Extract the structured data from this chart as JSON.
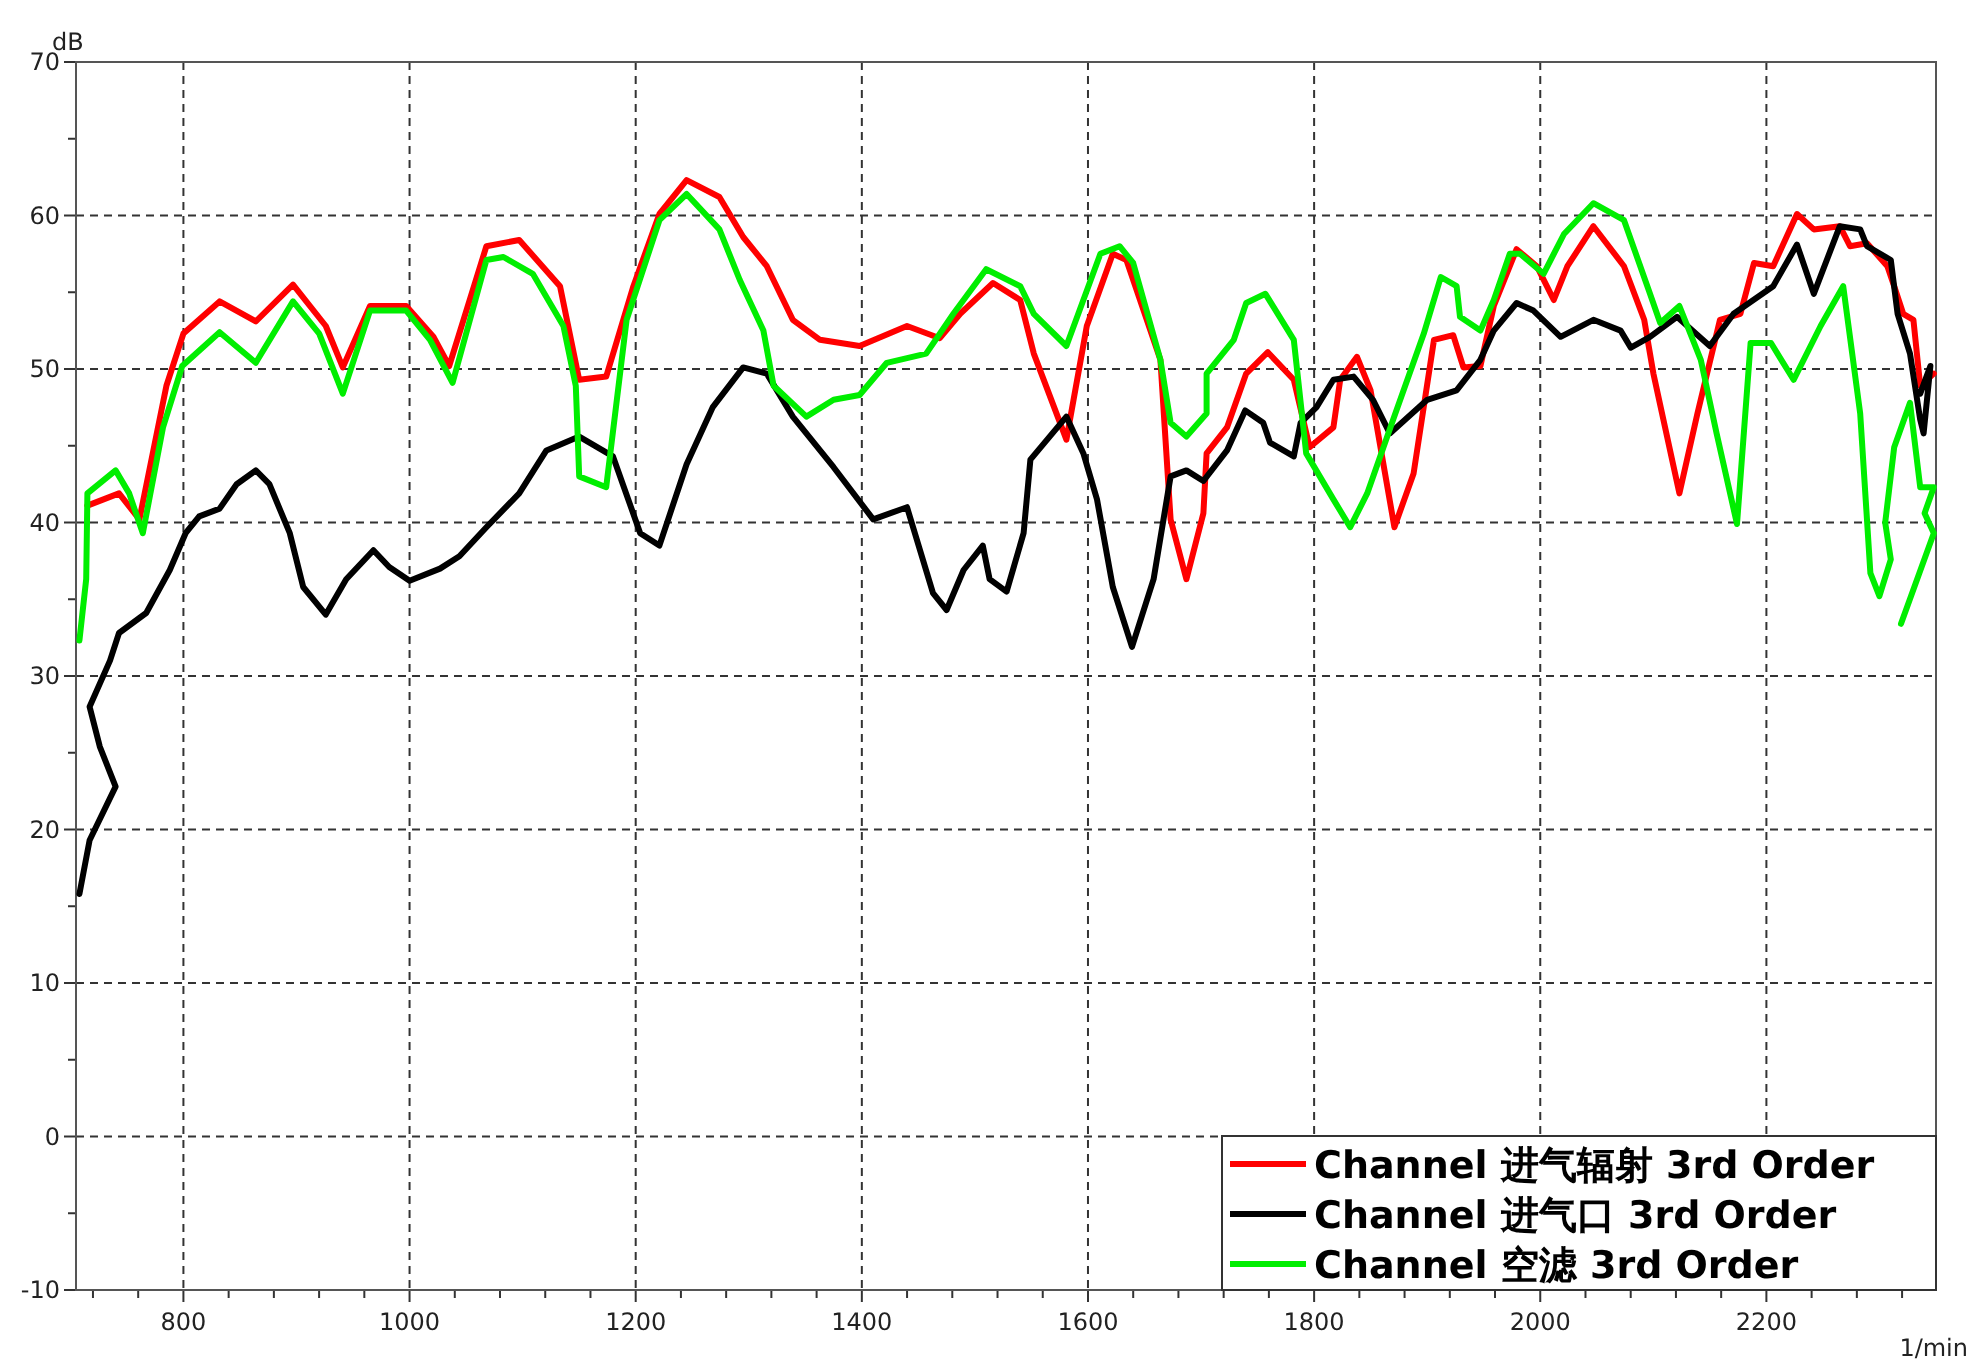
{
  "chart_data": {
    "type": "line",
    "ylabel": "dB",
    "xlabel": "1/min",
    "xlim": [
      705,
      2350
    ],
    "ylim": [
      -10,
      70
    ],
    "xticks": [
      {
        "value": 720,
        "label": null
      },
      {
        "value": 760,
        "label": null
      },
      800,
      {
        "value": 840,
        "label": null
      },
      {
        "value": 880,
        "label": null
      },
      {
        "value": 920,
        "label": null
      },
      {
        "value": 960,
        "label": null
      },
      1000,
      {
        "value": 1040,
        "label": null
      },
      {
        "value": 1080,
        "label": null
      },
      {
        "value": 1120,
        "label": null
      },
      {
        "value": 1160,
        "label": null
      },
      1200,
      {
        "value": 1240,
        "label": null
      },
      {
        "value": 1280,
        "label": null
      },
      {
        "value": 1320,
        "label": null
      },
      {
        "value": 1360,
        "label": null
      },
      1400,
      {
        "value": 1440,
        "label": null
      },
      {
        "value": 1480,
        "label": null
      },
      {
        "value": 1520,
        "label": null
      },
      {
        "value": 1560,
        "label": null
      },
      1600,
      {
        "value": 1640,
        "label": null
      },
      {
        "value": 1680,
        "label": null
      },
      {
        "value": 1720,
        "label": null
      },
      {
        "value": 1760,
        "label": null
      },
      1800,
      {
        "value": 1840,
        "label": null
      },
      {
        "value": 1880,
        "label": null
      },
      {
        "value": 1920,
        "label": null
      },
      {
        "value": 1960,
        "label": null
      },
      2000,
      {
        "value": 2040,
        "label": null
      },
      {
        "value": 2080,
        "label": null
      },
      {
        "value": 2120,
        "label": null
      },
      {
        "value": 2160,
        "label": null
      },
      2200,
      {
        "value": 2240,
        "label": null
      },
      {
        "value": 2280,
        "label": null
      },
      {
        "value": 2320,
        "label": null
      }
    ],
    "yticks": [
      -10,
      {
        "value": -5,
        "label": null
      },
      0,
      {
        "value": 5,
        "label": null
      },
      10,
      {
        "value": 15,
        "label": null
      },
      20,
      {
        "value": 25,
        "label": null
      },
      30,
      {
        "value": 35,
        "label": null
      },
      40,
      {
        "value": 45,
        "label": null
      },
      50,
      {
        "value": 55,
        "label": null
      },
      60,
      {
        "value": 65,
        "label": null
      },
      70
    ],
    "grid": true,
    "legend": "bottom right",
    "marker": "none",
    "series": [
      {
        "name": "Channel 进气辐射 3rd Order",
        "color": "#ff0000",
        "x": [
          715,
          743,
          761,
          785,
          800,
          832,
          864,
          897,
          926,
          941,
          965,
          997,
          1021,
          1035,
          1068,
          1097,
          1133,
          1150,
          1174,
          1198,
          1221,
          1245,
          1274,
          1295,
          1316,
          1339,
          1363,
          1398,
          1440,
          1469,
          1487,
          1516,
          1540,
          1552,
          1581,
          1599,
          1622,
          1634,
          1664,
          1673,
          1687,
          1702,
          1705,
          1723,
          1740,
          1759,
          1782,
          1796,
          1817,
          1823,
          1838,
          1850,
          1871,
          1888,
          1906,
          1923,
          1932,
          1947,
          1959,
          1979,
          1997,
          2012,
          2024,
          2047,
          2074,
          2092,
          2100,
          2123,
          2139,
          2159,
          2177,
          2189,
          2206,
          2227,
          2242,
          2265,
          2274,
          2289,
          2307,
          2313,
          2321,
          2330,
          2336,
          2348
        ],
        "values": [
          41.1,
          41.9,
          40.2,
          48.9,
          52.3,
          54.4,
          53.1,
          55.5,
          52.8,
          50.1,
          54.1,
          54.1,
          52.1,
          50.2,
          58.0,
          58.4,
          55.4,
          49.3,
          49.5,
          55.4,
          60.1,
          62.3,
          61.2,
          58.6,
          56.7,
          53.2,
          51.9,
          51.5,
          52.8,
          52.0,
          53.6,
          55.6,
          54.5,
          51.0,
          45.4,
          52.8,
          57.5,
          57.1,
          50.6,
          40.2,
          36.3,
          40.6,
          44.5,
          46.2,
          49.7,
          51.1,
          49.3,
          44.9,
          46.2,
          49.3,
          50.8,
          48.6,
          39.7,
          43.2,
          51.9,
          52.2,
          50.1,
          50.2,
          54.1,
          57.8,
          56.7,
          54.5,
          56.7,
          59.3,
          56.7,
          53.2,
          49.7,
          41.9,
          47.1,
          53.2,
          53.6,
          56.9,
          56.7,
          60.1,
          59.1,
          59.3,
          58.0,
          58.2,
          56.7,
          55.4,
          53.6,
          53.2,
          48.9,
          49.7
        ]
      },
      {
        "name": "Channel 进气口 3rd Order",
        "color": "#000000",
        "x": [
          708,
          717,
          740,
          726,
          717,
          735,
          743,
          767,
          788,
          802,
          814,
          832,
          847,
          864,
          876,
          894,
          906,
          926,
          944,
          968,
          982,
          1000,
          1027,
          1044,
          1068,
          1097,
          1121,
          1150,
          1180,
          1204,
          1221,
          1245,
          1268,
          1295,
          1316,
          1339,
          1375,
          1410,
          1440,
          1463,
          1475,
          1490,
          1507,
          1513,
          1528,
          1543,
          1549,
          1581,
          1596,
          1608,
          1622,
          1639,
          1658,
          1673,
          1687,
          1702,
          1723,
          1739,
          1755,
          1761,
          1782,
          1788,
          1802,
          1817,
          1835,
          1852,
          1867,
          1900,
          1926,
          1947,
          1959,
          1979,
          1994,
          2018,
          2047,
          2071,
          2080,
          2097,
          2121,
          2150,
          2171,
          2206,
          2227,
          2242,
          2265,
          2283,
          2289,
          2310,
          2316,
          2327,
          2336,
          2339,
          2345,
          2336
        ],
        "values": [
          15.8,
          19.3,
          22.8,
          25.4,
          28.0,
          31.0,
          32.8,
          34.1,
          36.9,
          39.3,
          40.4,
          40.9,
          42.5,
          43.4,
          42.5,
          39.3,
          35.8,
          34.0,
          36.3,
          38.2,
          37.1,
          36.2,
          37.0,
          37.8,
          39.7,
          41.9,
          44.7,
          45.6,
          44.3,
          39.3,
          38.5,
          43.8,
          47.5,
          50.1,
          49.7,
          46.9,
          43.6,
          40.2,
          41.0,
          35.4,
          34.3,
          36.9,
          38.5,
          36.3,
          35.5,
          39.3,
          44.1,
          46.9,
          44.5,
          41.5,
          35.8,
          31.9,
          36.3,
          43.0,
          43.4,
          42.7,
          44.7,
          47.3,
          46.5,
          45.2,
          44.3,
          46.5,
          47.5,
          49.3,
          49.5,
          48.0,
          45.8,
          48.0,
          48.6,
          50.6,
          52.5,
          54.3,
          53.8,
          52.1,
          53.2,
          52.5,
          51.4,
          52.1,
          53.4,
          51.5,
          53.6,
          55.4,
          58.1,
          54.9,
          59.3,
          59.1,
          58.0,
          57.1,
          53.6,
          51.0,
          46.7,
          45.8,
          50.2,
          48.4
        ]
      },
      {
        "name": "Channel 空滤 3rd Order",
        "color": "#00ee00",
        "x": [
          708,
          714,
          715,
          740,
          752,
          764,
          782,
          799,
          832,
          864,
          897,
          920,
          941,
          965,
          997,
          1018,
          1038,
          1068,
          1083,
          1109,
          1136,
          1147,
          1150,
          1174,
          1192,
          1221,
          1245,
          1274,
          1292,
          1313,
          1322,
          1351,
          1375,
          1398,
          1422,
          1457,
          1481,
          1510,
          1540,
          1552,
          1581,
          1611,
          1628,
          1640,
          1664,
          1673,
          1687,
          1705,
          1705,
          1729,
          1740,
          1757,
          1782,
          1793,
          1817,
          1832,
          1847,
          1870,
          1897,
          1912,
          1926,
          1929,
          1947,
          1959,
          1973,
          1982,
          2003,
          2021,
          2047,
          2074,
          2097,
          2106,
          2123,
          2142,
          2156,
          2174,
          2186,
          2204,
          2224,
          2248,
          2268,
          2283,
          2292,
          2300,
          2310,
          2305,
          2313,
          2327,
          2336,
          2348,
          2340,
          2348,
          2319,
          2348
        ],
        "values": [
          32.3,
          36.3,
          41.9,
          43.4,
          41.9,
          39.3,
          46.2,
          50.2,
          52.4,
          50.4,
          54.4,
          52.3,
          48.4,
          53.8,
          53.8,
          51.9,
          49.1,
          57.1,
          57.3,
          56.2,
          52.8,
          48.9,
          43.0,
          42.3,
          53.2,
          59.7,
          61.4,
          59.1,
          55.8,
          52.5,
          48.9,
          46.9,
          48.0,
          48.3,
          50.4,
          51.0,
          53.6,
          56.5,
          55.4,
          53.6,
          51.5,
          57.5,
          58.0,
          56.9,
          50.6,
          46.5,
          45.6,
          47.1,
          49.7,
          51.9,
          54.3,
          54.9,
          51.9,
          44.5,
          41.5,
          39.7,
          41.9,
          46.7,
          52.3,
          56.0,
          55.4,
          53.4,
          52.5,
          54.5,
          57.5,
          57.5,
          56.2,
          58.8,
          60.8,
          59.7,
          54.9,
          53.0,
          54.1,
          50.6,
          45.8,
          39.9,
          51.7,
          51.7,
          49.3,
          52.8,
          55.4,
          47.1,
          36.7,
          35.2,
          37.6,
          40.0,
          44.9,
          47.8,
          42.3,
          42.3,
          40.6,
          39.3,
          33.4,
          39.3
        ]
      }
    ]
  }
}
